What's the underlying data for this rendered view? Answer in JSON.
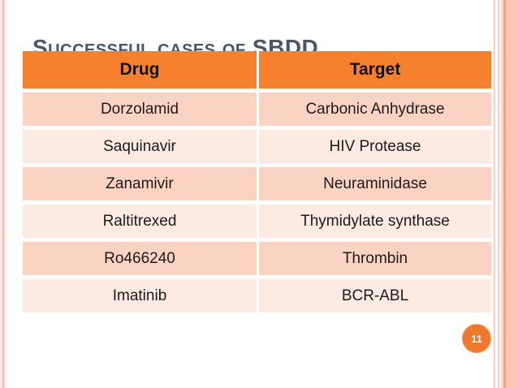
{
  "slide": {
    "title": "Successful cases of SBDD",
    "page_number": "11"
  },
  "table": {
    "columns": [
      "Drug",
      "Target"
    ],
    "rows": [
      {
        "drug": "Dorzolamid",
        "target": "Carbonic Anhydrase"
      },
      {
        "drug": "Saquinavir",
        "target": "HIV Protease"
      },
      {
        "drug": "Zanamivir",
        "target": "Neuraminidase"
      },
      {
        "drug": "Raltitrexed",
        "target": "Thymidylate synthase"
      },
      {
        "drug": "Ro466240",
        "target": "Thrombin"
      },
      {
        "drug": "Imatinib",
        "target": "BCR-ABL"
      }
    ]
  },
  "colors": {
    "header_bg": "#f6802d",
    "row_odd": "#fbd3c3",
    "row_even": "#fdeae2",
    "title_color": "#4a5565",
    "accent": "#f0772e",
    "accent_rim": "#f49a67",
    "stripe_light": "#fbe5de",
    "stripe_line": "#eec0b0",
    "stripe_line2": "#f6cdbf",
    "stripe_peach1": "#fad4c4",
    "stripe_peach2": "#f0a888",
    "stripe_peach3": "#f9c8b2"
  }
}
